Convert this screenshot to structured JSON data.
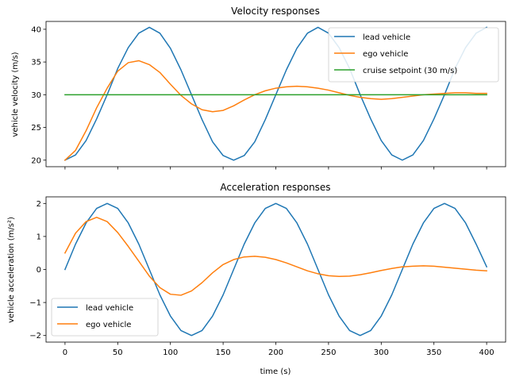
{
  "chart_data": [
    {
      "type": "line",
      "title": "Velocity responses",
      "xlabel": "",
      "ylabel": "vehicle velocity (m/s)",
      "xlim": [
        -18,
        418
      ],
      "ylim": [
        19,
        41.2
      ],
      "xticks": [
        0,
        50,
        100,
        150,
        200,
        250,
        300,
        350,
        400
      ],
      "xtick_labels_shown": false,
      "yticks": [
        20,
        25,
        30,
        35,
        40
      ],
      "legend_position": "top-right",
      "x": [
        0,
        10,
        20,
        30,
        40,
        50,
        60,
        70,
        80,
        90,
        100,
        110,
        120,
        130,
        140,
        150,
        160,
        170,
        180,
        190,
        200,
        210,
        220,
        230,
        240,
        250,
        260,
        270,
        280,
        290,
        300,
        310,
        320,
        330,
        340,
        350,
        360,
        370,
        380,
        390,
        400
      ],
      "series": [
        {
          "name": "lead vehicle",
          "color": "#1f77b4",
          "values": [
            20.0,
            20.8,
            23.0,
            26.3,
            30.0,
            34.0,
            37.2,
            39.4,
            40.3,
            39.4,
            37.1,
            33.8,
            30.0,
            26.2,
            22.8,
            20.7,
            20.0,
            20.7,
            22.8,
            26.2,
            30.0,
            33.8,
            37.1,
            39.4,
            40.3,
            39.4,
            37.2,
            34.0,
            30.0,
            26.3,
            23.0,
            20.8,
            20.0,
            20.8,
            23.0,
            26.3,
            30.0,
            34.0,
            37.2,
            39.4,
            40.3
          ]
        },
        {
          "name": "ego vehicle",
          "color": "#ff7f0e",
          "values": [
            20.0,
            21.5,
            24.5,
            28.0,
            31.0,
            33.6,
            34.9,
            35.2,
            34.6,
            33.4,
            31.6,
            29.9,
            28.6,
            27.7,
            27.4,
            27.6,
            28.3,
            29.2,
            30.0,
            30.6,
            31.0,
            31.2,
            31.3,
            31.2,
            31.0,
            30.7,
            30.3,
            29.9,
            29.6,
            29.4,
            29.3,
            29.4,
            29.6,
            29.8,
            30.0,
            30.1,
            30.2,
            30.3,
            30.3,
            30.2,
            30.2
          ]
        },
        {
          "name": "cruise setpoint (30 m/s)",
          "color": "#2ca02c",
          "values": [
            30,
            30,
            30,
            30,
            30,
            30,
            30,
            30,
            30,
            30,
            30,
            30,
            30,
            30,
            30,
            30,
            30,
            30,
            30,
            30,
            30,
            30,
            30,
            30,
            30,
            30,
            30,
            30,
            30,
            30,
            30,
            30,
            30,
            30,
            30,
            30,
            30,
            30,
            30,
            30,
            30
          ]
        }
      ]
    },
    {
      "type": "line",
      "title": "Acceleration responses",
      "xlabel": "time (s)",
      "ylabel": "vehicle acceleration (m/s²)",
      "xlim": [
        -18,
        418
      ],
      "ylim": [
        -2.2,
        2.2
      ],
      "xticks": [
        0,
        50,
        100,
        150,
        200,
        250,
        300,
        350,
        400
      ],
      "xtick_labels_shown": true,
      "yticks": [
        -2,
        -1,
        0,
        1,
        2
      ],
      "legend_position": "bottom-left",
      "x": [
        0,
        10,
        20,
        30,
        40,
        50,
        60,
        70,
        80,
        90,
        100,
        110,
        120,
        130,
        140,
        150,
        160,
        170,
        180,
        190,
        200,
        210,
        220,
        230,
        240,
        250,
        260,
        270,
        280,
        290,
        300,
        310,
        320,
        330,
        340,
        350,
        360,
        370,
        380,
        390,
        400
      ],
      "series": [
        {
          "name": "lead vehicle",
          "color": "#1f77b4",
          "values": [
            0.0,
            0.77,
            1.41,
            1.85,
            2.0,
            1.85,
            1.41,
            0.77,
            0.0,
            -0.77,
            -1.41,
            -1.85,
            -2.0,
            -1.85,
            -1.41,
            -0.77,
            0.0,
            0.77,
            1.41,
            1.85,
            2.0,
            1.85,
            1.41,
            0.77,
            0.0,
            -0.77,
            -1.41,
            -1.85,
            -2.0,
            -1.85,
            -1.41,
            -0.77,
            0.0,
            0.77,
            1.41,
            1.85,
            2.0,
            1.85,
            1.41,
            0.77,
            0.08
          ]
        },
        {
          "name": "ego vehicle",
          "color": "#ff7f0e",
          "values": [
            0.5,
            1.1,
            1.45,
            1.58,
            1.45,
            1.12,
            0.7,
            0.25,
            -0.2,
            -0.55,
            -0.75,
            -0.78,
            -0.65,
            -0.4,
            -0.1,
            0.15,
            0.3,
            0.38,
            0.4,
            0.37,
            0.3,
            0.2,
            0.08,
            -0.04,
            -0.13,
            -0.19,
            -0.21,
            -0.2,
            -0.16,
            -0.1,
            -0.03,
            0.03,
            0.08,
            0.1,
            0.11,
            0.1,
            0.07,
            0.04,
            0.01,
            -0.02,
            -0.04
          ]
        }
      ]
    }
  ]
}
